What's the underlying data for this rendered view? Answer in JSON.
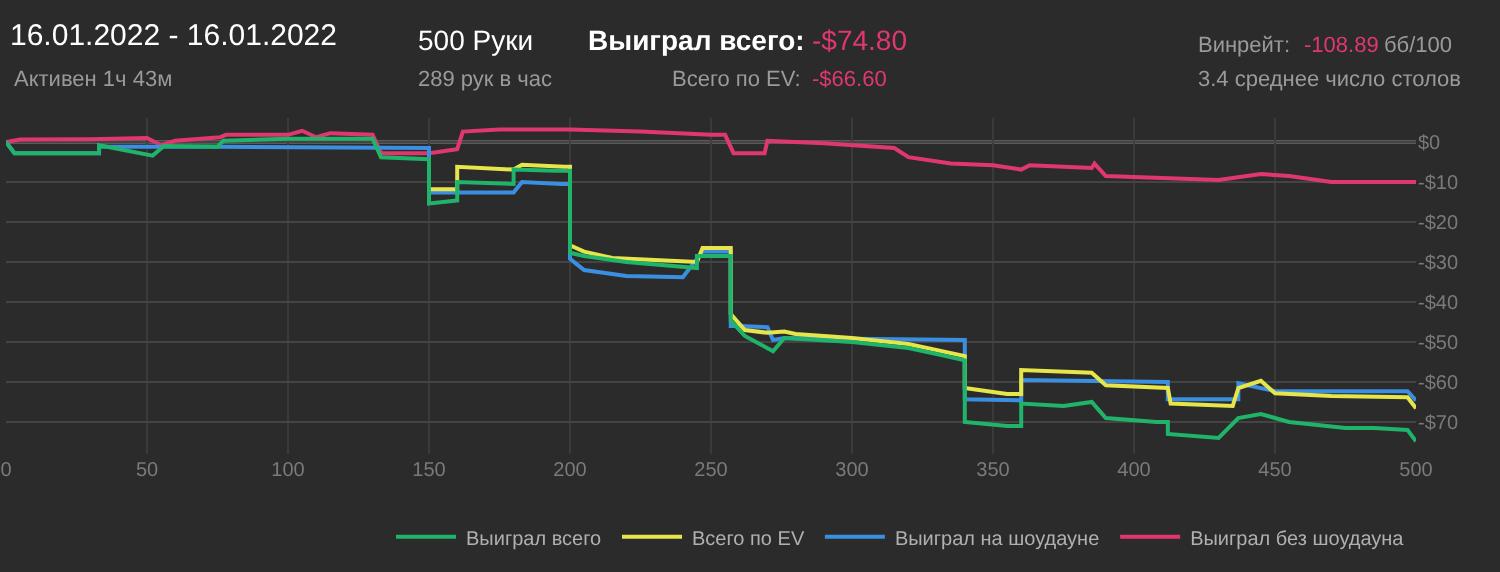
{
  "chart_data": {
    "type": "line",
    "title": "16.01.2022 - 16.01.2022",
    "subtitle": "Активен 1ч 43м",
    "annotations": [
      "500 Руки",
      "289 рук в час",
      "Выиграл всего:",
      "-$74.80",
      "Всего по EV:",
      "-$66.60",
      "Винрейт:",
      "-108.89",
      "бб/100",
      "3.4 среднее число столов"
    ],
    "series": [
      {
        "name": "Выиграл всего",
        "color": "#1fb46a",
        "x": [
          0,
          3,
          33,
          33,
          52,
          56,
          75,
          77,
          100,
          130,
          133,
          150,
          150,
          160,
          160,
          180,
          180,
          195,
          200,
          200,
          205,
          220,
          245,
          245,
          257,
          257,
          258,
          262,
          272,
          276,
          300,
          320,
          330,
          340,
          340,
          355,
          360,
          360,
          375,
          385,
          390,
          408,
          412,
          412,
          430,
          437,
          445,
          455,
          475,
          485,
          497,
          500
        ],
        "values": [
          0,
          -2.8,
          -2.8,
          -0.8,
          -3.4,
          -1,
          -1.2,
          0.3,
          0.8,
          0.8,
          -3.8,
          -4.3,
          -15.4,
          -14.6,
          -10,
          -10.5,
          -6.9,
          -7.2,
          -7.2,
          -27.7,
          -28.5,
          -30,
          -31.5,
          -28.5,
          -28.5,
          -44.6,
          -45.4,
          -48.5,
          -52.3,
          -49,
          -50,
          -51.5,
          -53,
          -54.6,
          -70,
          -71,
          -71,
          -65.4,
          -66,
          -65,
          -69,
          -70,
          -70,
          -73,
          -74,
          -69,
          -68,
          -70,
          -71.5,
          -71.5,
          -72,
          -74.8
        ]
      },
      {
        "name": "Всего по EV",
        "color": "#e6e64a",
        "x": [
          150,
          160,
          160,
          180,
          183,
          198,
          200,
          200,
          205,
          215,
          245,
          247,
          257,
          257,
          262,
          270,
          276,
          280,
          300,
          320,
          340,
          340,
          355,
          360,
          360,
          385,
          390,
          412,
          413,
          435,
          437,
          445,
          450,
          470,
          497,
          500
        ],
        "values": [
          -11.8,
          -11.8,
          -6.2,
          -6.9,
          -5.7,
          -6.2,
          -6.2,
          -25.8,
          -27.4,
          -29,
          -30,
          -26.5,
          -26.5,
          -43,
          -47,
          -47.7,
          -47.4,
          -48,
          -49,
          -50.5,
          -53.5,
          -61.5,
          -63,
          -63,
          -57,
          -57.7,
          -60.8,
          -61.5,
          -65.4,
          -66,
          -61.5,
          -59.7,
          -62.8,
          -63.5,
          -63.8,
          -66.6
        ]
      },
      {
        "name": "Выиграл на шоудауне",
        "color": "#3a8fe0",
        "x": [
          0,
          3,
          33,
          33,
          75,
          150,
          150,
          180,
          183,
          197,
          200,
          200,
          205,
          220,
          240,
          247,
          257,
          257,
          260,
          270,
          272,
          276,
          340,
          340,
          360,
          360,
          412,
          412,
          437,
          437,
          450,
          497,
          500
        ],
        "values": [
          0,
          -2.8,
          -2.8,
          -1.2,
          -1.2,
          -1.5,
          -12.6,
          -12.6,
          -10,
          -10.5,
          -10.5,
          -29.2,
          -32,
          -33.5,
          -33.8,
          -27.4,
          -27.4,
          -46,
          -46,
          -46.3,
          -49.5,
          -49,
          -49.5,
          -64.3,
          -64.6,
          -59.5,
          -60,
          -64.3,
          -64.3,
          -60.3,
          -62.3,
          -62.3,
          -64.6
        ]
      },
      {
        "name": "Выиграл без шоудауна",
        "color": "#e0386e",
        "x": [
          0,
          5,
          30,
          50,
          55,
          60,
          76,
          78,
          100,
          105,
          110,
          115,
          130,
          133,
          150,
          160,
          162,
          175,
          200,
          225,
          250,
          255,
          258,
          269,
          270,
          290,
          315,
          320,
          335,
          350,
          360,
          363,
          385,
          386,
          390,
          430,
          445,
          455,
          470,
          500
        ],
        "values": [
          0,
          0.6,
          0.7,
          1,
          -0.8,
          0.3,
          1.2,
          1.8,
          1.8,
          2.8,
          1.2,
          2.2,
          1.8,
          -2.8,
          -2.8,
          -1.8,
          2.6,
          3.1,
          3.1,
          2.6,
          1.8,
          1.8,
          -2.8,
          -2.8,
          0.3,
          -0.3,
          -1.5,
          -3.8,
          -5.4,
          -5.8,
          -6.9,
          -5.8,
          -6.5,
          -5.4,
          -8.5,
          -9.5,
          -8,
          -8.5,
          -10,
          -10
        ]
      }
    ],
    "xlim": [
      0,
      500
    ],
    "xticks": [
      0,
      50,
      100,
      150,
      200,
      250,
      300,
      350,
      400,
      450,
      500
    ],
    "ylim": [
      -78,
      6
    ],
    "yticks": [
      {
        "value": 0,
        "label": "$0"
      },
      {
        "value": -10,
        "label": "-$10"
      },
      {
        "value": -20,
        "label": "-$20"
      },
      {
        "value": -30,
        "label": "-$30"
      },
      {
        "value": -40,
        "label": "-$40"
      },
      {
        "value": -50,
        "label": "-$50"
      },
      {
        "value": -60,
        "label": "-$60"
      },
      {
        "value": -70,
        "label": "-$70"
      }
    ],
    "ref_lines": [
      {
        "axis": "y",
        "value": 0,
        "color": "#8a8a8a"
      }
    ],
    "grid": true,
    "legend": "bottom right",
    "marker": "none",
    "line_style": "solid"
  }
}
